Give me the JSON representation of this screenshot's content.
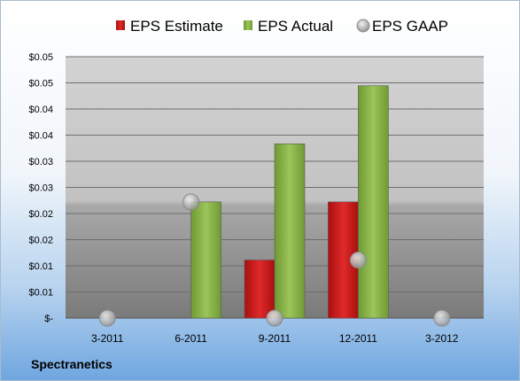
{
  "chart_data": {
    "type": "bar",
    "categories": [
      "3-2011",
      "6-2011",
      "9-2011",
      "12-2011",
      "3-2012"
    ],
    "series": [
      {
        "name": "EPS Estimate",
        "type": "bar",
        "values": [
          null,
          null,
          0.01,
          0.02,
          null
        ],
        "color": "#cc1a1a"
      },
      {
        "name": "EPS Actual",
        "type": "bar",
        "values": [
          null,
          0.02,
          0.03,
          0.04,
          null
        ],
        "color": "#8db54a"
      },
      {
        "name": "EPS GAAP",
        "type": "scatter",
        "values": [
          0,
          0.02,
          0,
          0.01,
          0
        ],
        "color": "#b8b8b8"
      }
    ],
    "y_ticks": [
      "$-",
      "$0.01",
      "$0.01",
      "$0.02",
      "$0.02",
      "$0.03",
      "$0.03",
      "$0.04",
      "$0.04",
      "$0.05",
      "$0.05"
    ],
    "ylim": [
      0,
      0.045
    ],
    "grid": true,
    "legend": "top"
  },
  "company": "Spectranetics"
}
